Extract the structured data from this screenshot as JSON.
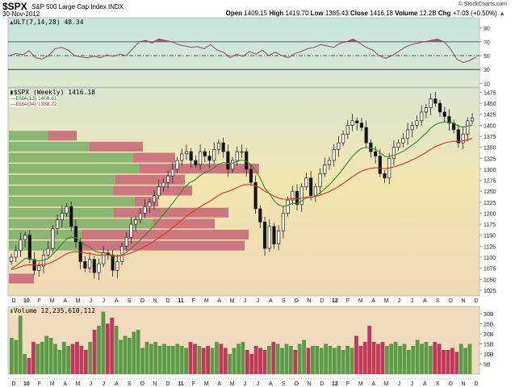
{
  "header": {
    "symbol": "$SPX",
    "name": "S&P 500 Large Cap Index  INDX",
    "date": "30-Nov-2012",
    "copyright": "© StockCharts.com",
    "quote": {
      "open_label": "Open",
      "open": "1409.15",
      "high_label": "High",
      "high": "1419.70",
      "low_label": "Low",
      "low": "1385.43",
      "close_label": "Close",
      "close": "1416.18",
      "volume_label": "Volume",
      "volume": "12.2B",
      "chg_label": "Chg",
      "chg": "+7.03 (+0.50%)",
      "chg_icon": "up-triangle-icon"
    }
  },
  "ult_panel": {
    "legend": "ULT(7,14,28) 48.34",
    "axis_ticks": [
      "90",
      "70",
      "50",
      "30",
      "10"
    ]
  },
  "price_panel": {
    "legend": "$SPX (Weekly) 1416.18",
    "ema13_legend": "EMA(13) 1408.61",
    "ema34_legend": "EMA(34) 1388.22",
    "axis_ticks": [
      "1475",
      "1450",
      "1425",
      "1400",
      "1375",
      "1350",
      "1325",
      "1300",
      "1275",
      "1250",
      "1225",
      "1200",
      "1175",
      "1150",
      "1125",
      "1100",
      "1075",
      "1050",
      "1025"
    ]
  },
  "volume_panel": {
    "legend": "Volume 12,235,610,112",
    "axis_ticks": [
      "30B",
      "25B",
      "20B",
      "15B",
      "10B",
      "5B"
    ]
  },
  "x_axis": {
    "labels": [
      "D",
      "10",
      "F",
      "M",
      "A",
      "M",
      "J",
      "J",
      "A",
      "S",
      "O",
      "N",
      "D",
      "11",
      "F",
      "M",
      "A",
      "M",
      "J",
      "J",
      "A",
      "S",
      "O",
      "N",
      "D",
      "12",
      "F",
      "M",
      "A",
      "M",
      "J",
      "J",
      "A",
      "S",
      "O",
      "N",
      "D"
    ],
    "bold": [
      "10",
      "11",
      "12"
    ]
  },
  "colors": {
    "up_volume": "#5a9a48",
    "down_volume": "#c0385a",
    "ema13": "#2f8a2f",
    "ema34": "#e03020",
    "ult_line": "#8a4a6a",
    "vbp_green": "#7fb06a",
    "vbp_red": "#c86a78"
  },
  "chart_data": [
    {
      "type": "line",
      "title": "ULT(7,14,28) 48.34",
      "ylim": [
        0,
        100
      ],
      "reference_lines": [
        70,
        50,
        30
      ],
      "series": [
        {
          "name": "ULT",
          "values": [
            50,
            53,
            51,
            57,
            47,
            45,
            50,
            60,
            62,
            58,
            50,
            48,
            47,
            49,
            47,
            51,
            49,
            52,
            50,
            60,
            70,
            72,
            68,
            74,
            72,
            70,
            66,
            64,
            62,
            63,
            60,
            66,
            58,
            55,
            47,
            52,
            49,
            56,
            52,
            58,
            50,
            55,
            50,
            47,
            53,
            56,
            60,
            62,
            66,
            64,
            62,
            68,
            70,
            74,
            68,
            62,
            58,
            50,
            46,
            50,
            56,
            62,
            66,
            68,
            70,
            72,
            74,
            70,
            60,
            45,
            40,
            43,
            48
          ]
        }
      ]
    },
    {
      "type": "candlestick",
      "title": "$SPX (Weekly) 1416.18",
      "ylim": [
        1012,
        1485
      ],
      "x_range": [
        "Dec 2009",
        "Nov 2012"
      ],
      "approx_closes": [
        1100,
        1115,
        1140,
        1150,
        1095,
        1070,
        1080,
        1105,
        1120,
        1165,
        1185,
        1200,
        1215,
        1170,
        1135,
        1090,
        1075,
        1095,
        1065,
        1085,
        1110,
        1105,
        1070,
        1090,
        1125,
        1145,
        1175,
        1185,
        1200,
        1215,
        1225,
        1240,
        1260,
        1270,
        1285,
        1300,
        1320,
        1335,
        1340,
        1320,
        1310,
        1340,
        1330,
        1320,
        1345,
        1360,
        1340,
        1300,
        1320,
        1340,
        1340,
        1300,
        1270,
        1210,
        1180,
        1120,
        1170,
        1130,
        1160,
        1200,
        1230,
        1250,
        1220,
        1260,
        1280,
        1240,
        1260,
        1290,
        1310,
        1320,
        1345,
        1360,
        1380,
        1400,
        1410,
        1405,
        1395,
        1360,
        1340,
        1330,
        1290,
        1280,
        1325,
        1350,
        1360,
        1370,
        1390,
        1400,
        1410,
        1430,
        1440,
        1460,
        1450,
        1430,
        1420,
        1405,
        1390,
        1360,
        1380,
        1410,
        1416
      ],
      "series": [
        {
          "name": "EMA(13)",
          "last": 1408.61
        },
        {
          "name": "EMA(34)",
          "last": 1388.22
        }
      ],
      "volume_by_price": {
        "price_zones": [
          1450,
          1425,
          1400,
          1375,
          1350,
          1325,
          1300,
          1275,
          1250,
          1225,
          1200,
          1175,
          1150,
          1125,
          1100,
          1075,
          1050
        ],
        "note": "horizontal bars split green (up volume) and red (down volume)"
      }
    },
    {
      "type": "bar",
      "title": "Volume 12,235,610,112",
      "ylabel": "Volume",
      "ylim": [
        0,
        32
      ],
      "units": "B",
      "values_billion": [
        18,
        17,
        29,
        10,
        8,
        16,
        15,
        16,
        19,
        18,
        15,
        12,
        16,
        14,
        15,
        16,
        14,
        12,
        16,
        22,
        24,
        31,
        25,
        28,
        24,
        17,
        19,
        18,
        21,
        22,
        13,
        16,
        15,
        16,
        14,
        15,
        14,
        14,
        15,
        14,
        13,
        16,
        15,
        14,
        13,
        14,
        13,
        16,
        15,
        13,
        10,
        13,
        15,
        16,
        12,
        10,
        14,
        13,
        12,
        14,
        16,
        15,
        13,
        15,
        14,
        12,
        15,
        17,
        13,
        14,
        14,
        13,
        15,
        14,
        13,
        14,
        12,
        14,
        13,
        19,
        14,
        16,
        24,
        16,
        15,
        16,
        14,
        15,
        16,
        14,
        15,
        12,
        14,
        17,
        15,
        16,
        14,
        16,
        15,
        12,
        12,
        13,
        11,
        15,
        13,
        15
      ]
    }
  ]
}
